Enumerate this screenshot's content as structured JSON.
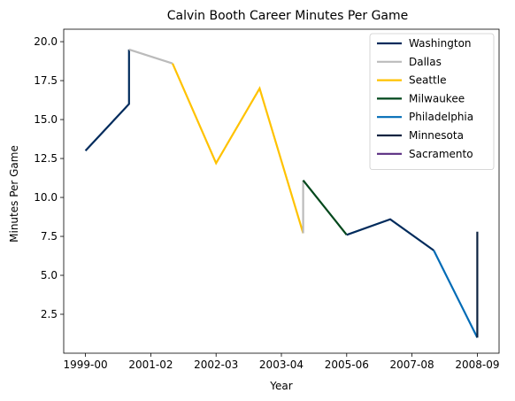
{
  "chart_data": {
    "type": "line",
    "title": "Calvin Booth Career Minutes Per Game",
    "xlabel": "Year",
    "ylabel": "Minutes Per Game",
    "x_ticks": [
      {
        "x": 0,
        "label": "1999-00"
      },
      {
        "x": 1.5,
        "label": "2001-02"
      },
      {
        "x": 3,
        "label": "2002-03"
      },
      {
        "x": 4.5,
        "label": "2003-04"
      },
      {
        "x": 6,
        "label": "2005-06"
      },
      {
        "x": 7.5,
        "label": "2007-08"
      },
      {
        "x": 9,
        "label": "2008-09"
      }
    ],
    "y_ticks": [
      2.5,
      5.0,
      7.5,
      10.0,
      12.5,
      15.0,
      17.5,
      20.0
    ],
    "xlim": [
      -0.5,
      9.5
    ],
    "ylim": [
      0.0,
      20.8
    ],
    "grid": false,
    "legend_position": "top-right",
    "series": [
      {
        "name": "Washington",
        "color": "#002B5C",
        "points": [
          [
            0,
            13.0
          ],
          [
            1,
            16.0
          ],
          [
            1,
            19.5
          ]
        ]
      },
      {
        "name": "Dallas",
        "color": "#BBBBBB",
        "points": [
          [
            1,
            19.5
          ],
          [
            2,
            18.6
          ]
        ]
      },
      {
        "name": "Seattle",
        "color": "#FFC200",
        "points": [
          [
            2,
            18.6
          ],
          [
            3,
            12.2
          ],
          [
            4,
            17.0
          ],
          [
            5,
            7.7
          ]
        ]
      },
      {
        "name": "Dallas",
        "color": "#BBBBBB",
        "points": [
          [
            5,
            7.7
          ],
          [
            5,
            11.1
          ]
        ]
      },
      {
        "name": "Milwaukee",
        "color": "#00471B",
        "points": [
          [
            5,
            11.1
          ],
          [
            6,
            7.6
          ]
        ]
      },
      {
        "name": "Philadelphia",
        "color": "#002B5C",
        "points": [
          [
            6,
            7.6
          ],
          [
            7,
            8.6
          ],
          [
            8,
            6.6
          ]
        ]
      },
      {
        "name": "Philadelphia",
        "color": "#006BB6",
        "points": [
          [
            8,
            6.6
          ],
          [
            9,
            1.0
          ]
        ]
      },
      {
        "name": "Minnesota",
        "color": "#0C2340",
        "points": [
          [
            9,
            1.0
          ],
          [
            9,
            7.8
          ]
        ]
      }
    ],
    "legend": [
      {
        "name": "Washington",
        "color": "#002B5C"
      },
      {
        "name": "Dallas",
        "color": "#BBBBBB"
      },
      {
        "name": "Seattle",
        "color": "#FFC200"
      },
      {
        "name": "Milwaukee",
        "color": "#00471B"
      },
      {
        "name": "Philadelphia",
        "color": "#006BB6"
      },
      {
        "name": "Minnesota",
        "color": "#0C2340"
      },
      {
        "name": "Sacramento",
        "color": "#5A2D81"
      }
    ]
  }
}
